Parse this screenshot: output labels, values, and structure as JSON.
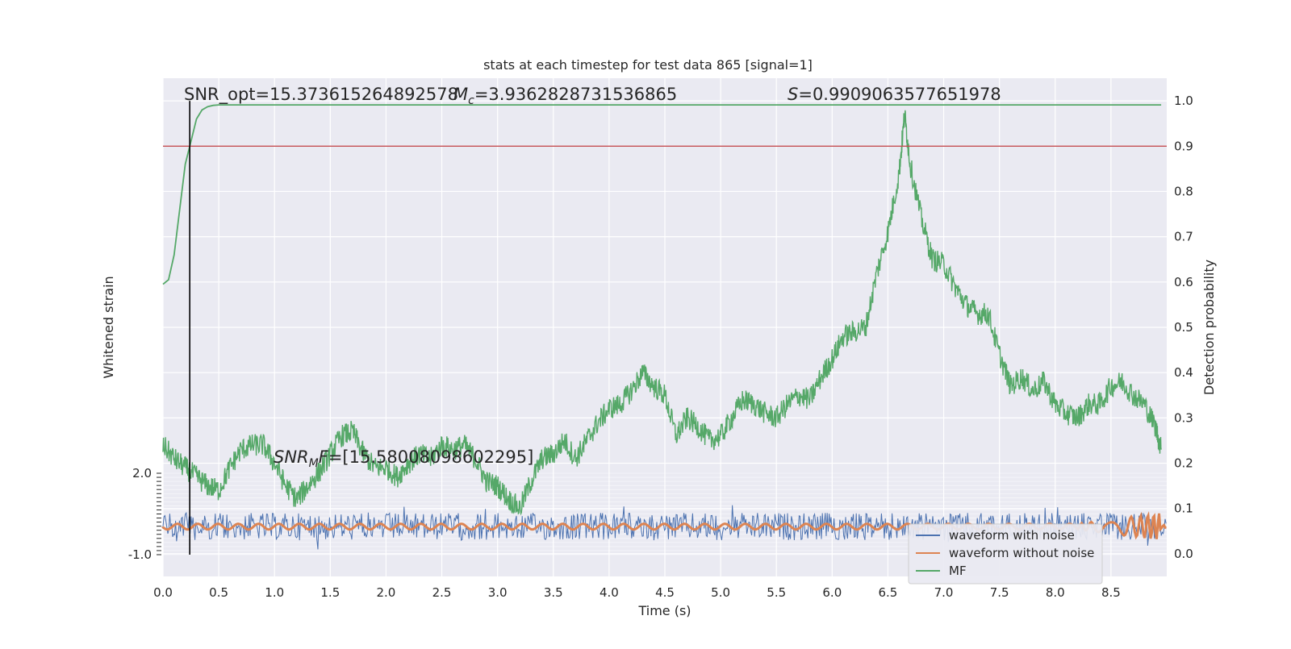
{
  "chart_data": {
    "type": "line",
    "title": "stats at each timestep for test data 865 [signal=1]",
    "xlabel": "Time (s)",
    "ylabel_left": "Whitened strain",
    "ylabel_right": "Detection probability",
    "xlim": [
      0.0,
      9.0
    ],
    "right_ylim": [
      -0.05,
      1.05
    ],
    "x_ticks": [
      "0.0",
      "0.5",
      "1.0",
      "1.5",
      "2.0",
      "2.5",
      "3.0",
      "3.5",
      "4.0",
      "4.5",
      "5.0",
      "5.5",
      "6.0",
      "6.5",
      "7.0",
      "7.5",
      "8.0",
      "8.5"
    ],
    "right_y_ticks": [
      "0.0",
      "0.1",
      "0.2",
      "0.3",
      "0.4",
      "0.5",
      "0.6",
      "0.7",
      "0.8",
      "0.9",
      "1.0"
    ],
    "left_y_ticks_visible": [
      "2.0",
      "-1.0"
    ],
    "grid": true,
    "legend_position": "lower-right",
    "legend": [
      "waveform with noise",
      "waveform without noise",
      "MF"
    ],
    "colors": {
      "waveform_with_noise": "#4c72b0",
      "waveform_without_noise": "#dd8452",
      "mf": "#55a868",
      "threshold": "#c44e52",
      "vline": "#000000",
      "plot_bg": "#eaeaf2"
    },
    "threshold_y": 0.9,
    "vline_x": 0.24,
    "annotations": {
      "snr_opt": "SNR_opt=15.373615264892578",
      "mc_symbol": "M",
      "mc_sub": "c",
      "mc_value": "=3.9362828731536865",
      "s_symbol": "S",
      "s_value": "=0.9909063577651978",
      "snr_mf_a": "SNR",
      "snr_mf_sub": "M",
      "snr_mf_b": "F",
      "snr_mf_value": "=[15.58008098602295]"
    },
    "series": [
      {
        "name": "MF",
        "x": [
          0.0,
          0.05,
          0.1,
          0.15,
          0.2,
          0.24,
          0.3,
          0.35,
          0.4,
          0.45,
          0.5,
          0.6,
          0.8,
          1.0,
          2.0,
          3.0,
          4.0,
          5.0,
          6.0,
          7.0,
          8.0,
          8.95
        ],
        "values": [
          0.595,
          0.605,
          0.66,
          0.76,
          0.86,
          0.9,
          0.96,
          0.98,
          0.987,
          0.99,
          0.991,
          0.991,
          0.991,
          0.991,
          0.991,
          0.991,
          0.991,
          0.991,
          0.991,
          0.991,
          0.991,
          0.991
        ]
      },
      {
        "name": "",
        "x": [
          0.0,
          0.1,
          0.2,
          0.3,
          0.4,
          0.5,
          0.6,
          0.7,
          0.8,
          0.9,
          1.0,
          1.1,
          1.2,
          1.3,
          1.4,
          1.5,
          1.6,
          1.7,
          1.8,
          1.9,
          2.0,
          2.1,
          2.2,
          2.3,
          2.4,
          2.5,
          2.6,
          2.7,
          2.8,
          2.9,
          3.0,
          3.1,
          3.2,
          3.3,
          3.4,
          3.5,
          3.6,
          3.7,
          3.8,
          3.9,
          4.0,
          4.1,
          4.2,
          4.3,
          4.4,
          4.5,
          4.6,
          4.7,
          4.8,
          4.9,
          5.0,
          5.1,
          5.2,
          5.3,
          5.4,
          5.5,
          5.6,
          5.7,
          5.8,
          5.9,
          6.0,
          6.1,
          6.2,
          6.3,
          6.4,
          6.5,
          6.6,
          6.65,
          6.7,
          6.8,
          6.9,
          7.0,
          7.1,
          7.2,
          7.3,
          7.4,
          7.5,
          7.6,
          7.7,
          7.8,
          7.9,
          8.0,
          8.1,
          8.2,
          8.3,
          8.4,
          8.5,
          8.6,
          8.7,
          8.8,
          8.9,
          8.95
        ],
        "values": [
          0.24,
          0.21,
          0.19,
          0.17,
          0.15,
          0.14,
          0.19,
          0.23,
          0.24,
          0.24,
          0.2,
          0.15,
          0.12,
          0.15,
          0.18,
          0.22,
          0.26,
          0.27,
          0.22,
          0.19,
          0.19,
          0.17,
          0.2,
          0.22,
          0.21,
          0.24,
          0.23,
          0.24,
          0.21,
          0.16,
          0.15,
          0.12,
          0.1,
          0.16,
          0.21,
          0.22,
          0.25,
          0.21,
          0.25,
          0.29,
          0.32,
          0.33,
          0.36,
          0.4,
          0.37,
          0.35,
          0.26,
          0.3,
          0.28,
          0.25,
          0.26,
          0.3,
          0.34,
          0.33,
          0.31,
          0.3,
          0.33,
          0.35,
          0.34,
          0.39,
          0.43,
          0.48,
          0.49,
          0.5,
          0.62,
          0.71,
          0.84,
          0.97,
          0.86,
          0.74,
          0.65,
          0.64,
          0.59,
          0.55,
          0.53,
          0.53,
          0.44,
          0.37,
          0.39,
          0.36,
          0.38,
          0.33,
          0.31,
          0.3,
          0.33,
          0.33,
          0.37,
          0.38,
          0.35,
          0.33,
          0.28,
          0.23
        ]
      },
      {
        "name": "waveform with noise",
        "x": [
          0.0,
          9.0
        ],
        "values": [
          0.06,
          0.06
        ]
      },
      {
        "name": "waveform without noise",
        "x": [
          0.0,
          9.0
        ],
        "values": [
          0.06,
          0.06
        ]
      }
    ]
  }
}
